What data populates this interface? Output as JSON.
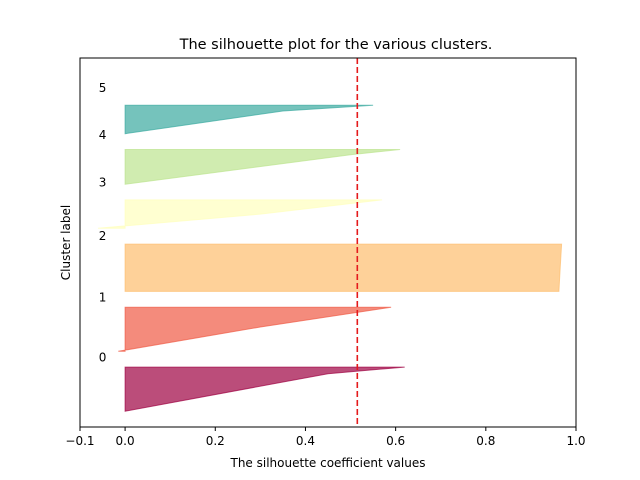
{
  "chart_data": {
    "type": "area",
    "title": "The silhouette plot for the various clusters.",
    "xlabel": "The silhouette coefficient values",
    "ylabel": "Cluster label",
    "xlim": [
      -0.1,
      1.0
    ],
    "xticks": [
      -0.1,
      0.0,
      0.2,
      0.4,
      0.6,
      0.8,
      1.0
    ],
    "xtick_labels": [
      "−0.1",
      "0.0",
      "0.2",
      "0.4",
      "0.6",
      "0.8",
      "1.0"
    ],
    "reference_line": {
      "x": 0.515,
      "color": "#e41a1c",
      "style": "dashed"
    },
    "grid": false,
    "clusters": [
      {
        "label": "0",
        "color": "#9e0142",
        "min": 0.0,
        "max": 0.62,
        "knee": 0.45,
        "knee_frac": 0.85,
        "size": 28
      },
      {
        "label": "1",
        "color": "#ef5a44",
        "min": -0.015,
        "max": 0.59,
        "knee": 0.3,
        "knee_frac": 0.55,
        "size": 28
      },
      {
        "label": "2",
        "color": "#fdbe6e",
        "min": 0.962,
        "max": 0.968,
        "knee": 0.965,
        "knee_frac": 0.5,
        "size": 30
      },
      {
        "label": "3",
        "color": "#ffffbe",
        "min": -0.06,
        "max": 0.57,
        "knee": 0.3,
        "knee_frac": 0.5,
        "size": 18
      },
      {
        "label": "4",
        "color": "#bce48f",
        "min": 0.0,
        "max": 0.61,
        "knee": 0.5,
        "knee_frac": 0.85,
        "size": 22
      },
      {
        "label": "5",
        "color": "#3aaaa0",
        "min": 0.0,
        "max": 0.55,
        "knee": 0.35,
        "knee_frac": 0.8,
        "size": 18
      }
    ]
  }
}
